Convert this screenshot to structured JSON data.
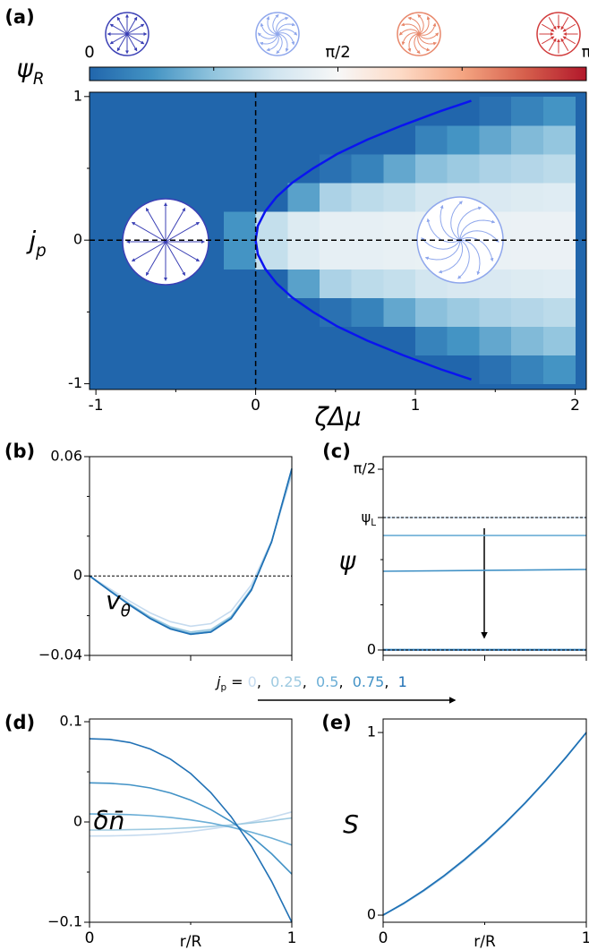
{
  "chart_data": [
    {
      "type": "heatmap",
      "panel_label": "(a)",
      "x": [
        -0.9,
        -0.7,
        -0.5,
        -0.3,
        -0.1,
        0.1,
        0.3,
        0.5,
        0.7,
        0.9,
        1.1,
        1.3,
        1.5,
        1.7,
        1.9
      ],
      "y": [
        -0.9,
        -0.7,
        -0.5,
        -0.3,
        -0.1,
        0.1,
        0.3,
        0.5,
        0.7,
        0.9
      ],
      "z": [
        [
          0,
          0,
          0,
          0,
          0,
          0,
          0,
          0,
          0,
          0,
          0,
          0,
          0.1,
          0.25,
          0.4
        ],
        [
          0,
          0,
          0,
          0,
          0,
          0,
          0,
          0,
          0,
          0,
          0.25,
          0.4,
          0.55,
          0.7,
          0.8
        ],
        [
          0,
          0,
          0,
          0,
          0,
          0,
          0,
          0.1,
          0.25,
          0.55,
          0.75,
          0.85,
          0.95,
          1.0,
          1.05
        ],
        [
          0,
          0,
          0,
          0,
          0,
          0,
          0.5,
          0.95,
          1.05,
          1.1,
          1.2,
          1.25,
          1.27,
          1.3,
          1.32
        ],
        [
          0,
          0,
          0,
          0,
          0.4,
          1.1,
          1.3,
          1.4,
          1.4,
          1.42,
          1.43,
          1.44,
          1.44,
          1.45,
          1.45
        ],
        [
          0,
          0,
          0,
          0,
          0.4,
          1.1,
          1.3,
          1.4,
          1.4,
          1.42,
          1.43,
          1.44,
          1.44,
          1.45,
          1.45
        ],
        [
          0,
          0,
          0,
          0,
          0,
          0,
          0.5,
          0.95,
          1.05,
          1.1,
          1.2,
          1.25,
          1.27,
          1.3,
          1.32
        ],
        [
          0,
          0,
          0,
          0,
          0,
          0,
          0,
          0.1,
          0.25,
          0.55,
          0.75,
          0.85,
          0.95,
          1.0,
          1.05
        ],
        [
          0,
          0,
          0,
          0,
          0,
          0,
          0,
          0,
          0,
          0,
          0.25,
          0.4,
          0.55,
          0.7,
          0.8
        ],
        [
          0,
          0,
          0,
          0,
          0,
          0,
          0,
          0,
          0,
          0,
          0,
          0,
          0.1,
          0.25,
          0.4
        ]
      ],
      "xlim": [
        -1.04,
        2.07
      ],
      "ylim": [
        -1.04,
        1.03
      ],
      "xticks": [
        -1,
        0,
        1,
        2
      ],
      "yticks": [
        -1,
        0,
        1
      ],
      "xminor": [
        -0.5,
        0.5,
        1.5
      ],
      "yminor": [
        -0.5,
        0.5
      ],
      "xlabel": "ζΔμ",
      "ylabel": {
        "text": "j",
        "subscript": "p"
      },
      "vlines": [
        0
      ],
      "hlines": [
        0
      ],
      "curve": {
        "color": "#0a14f0",
        "x": [
          1.35,
          1.16,
          0.92,
          0.7,
          0.51,
          0.36,
          0.23,
          0.13,
          0.06,
          0.014,
          0,
          0.014,
          0.06,
          0.13,
          0.23,
          0.36,
          0.51,
          0.7,
          0.92,
          1.16,
          1.35
        ],
        "y": [
          -0.97,
          -0.9,
          -0.8,
          -0.7,
          -0.6,
          -0.5,
          -0.4,
          -0.3,
          -0.2,
          -0.1,
          0,
          0.1,
          0.2,
          0.3,
          0.4,
          0.5,
          0.6,
          0.7,
          0.8,
          0.9,
          0.97
        ]
      },
      "colorbar": {
        "label": {
          "text": "ψ",
          "subscript": "R"
        },
        "lim": [
          0,
          3.1416
        ],
        "ticks": [
          {
            "value": 0,
            "label": "0"
          },
          {
            "value": 1.5708,
            "label": "π/2"
          },
          {
            "value": 3.1416,
            "label": "π"
          }
        ],
        "minor": [
          0.7854,
          2.3562
        ],
        "colors": [
          "#2166ac",
          "#4393c3",
          "#92c5de",
          "#d1e5f0",
          "#f7f7f7",
          "#fddbc7",
          "#f4a582",
          "#d6604d",
          "#b2182b"
        ]
      }
    },
    {
      "type": "line",
      "panel_label": "(b)",
      "x": [
        0,
        0.1,
        0.2,
        0.3,
        0.4,
        0.5,
        0.6,
        0.7,
        0.8,
        0.9,
        1
      ],
      "xlim": [
        0,
        1
      ],
      "ylim": [
        -0.04,
        0.06
      ],
      "xticks": [
        0,
        0.5,
        1
      ],
      "xtick_labels": false,
      "yticks": [
        {
          "value": 0.06,
          "label": "0.06"
        },
        0,
        {
          "value": -0.04,
          "label": "−0.04"
        }
      ],
      "yminor": [
        -0.02,
        0.02,
        0.04
      ],
      "ylabel": {
        "text": "v",
        "subscript": "θ"
      },
      "hlines": [
        0
      ],
      "series": [
        {
          "name": "0",
          "color": "#c6dbef",
          "values": [
            0,
            -0.0065,
            -0.0128,
            -0.0186,
            -0.023,
            -0.0253,
            -0.024,
            -0.0177,
            -0.0045,
            0.0176,
            0.051
          ]
        },
        {
          "name": "0.25",
          "color": "#9ecae1",
          "values": [
            0,
            -0.0072,
            -0.0142,
            -0.0206,
            -0.0256,
            -0.0282,
            -0.027,
            -0.0204,
            -0.0064,
            0.0173,
            0.053
          ]
        },
        {
          "name": "0.5",
          "color": "#6baed6",
          "values": [
            0,
            -0.0074,
            -0.0146,
            -0.0212,
            -0.0263,
            -0.029,
            -0.0279,
            -0.0211,
            -0.0069,
            0.0171,
            0.0537
          ]
        },
        {
          "name": "0.75",
          "color": "#4292c6",
          "values": [
            0,
            -0.0075,
            -0.0147,
            -0.0214,
            -0.0266,
            -0.0293,
            -0.0282,
            -0.0214,
            -0.0071,
            0.0171,
            0.0539
          ]
        },
        {
          "name": "1",
          "color": "#2171b5",
          "values": [
            0,
            -0.0075,
            -0.0148,
            -0.0215,
            -0.0267,
            -0.0294,
            -0.0283,
            -0.0215,
            -0.0072,
            0.0171,
            0.054
          ]
        }
      ]
    },
    {
      "type": "line",
      "panel_label": "(c)",
      "x": [
        0,
        1
      ],
      "xlim": [
        0,
        1
      ],
      "ylim": [
        -0.047,
        1.68
      ],
      "xticks": [
        0,
        0.5,
        1
      ],
      "xtick_labels": false,
      "yticks": [
        {
          "value": 1.5708,
          "label": "π/2"
        },
        {
          "value": 1.151,
          "label": "ψ",
          "subscript": "L"
        },
        0
      ],
      "yminor": [
        0.3927,
        0.7854
      ],
      "ylabel": "ψ",
      "hlines": [
        1.151,
        0
      ],
      "series": [
        {
          "color": "#c6dbef",
          "values": [
            1.151,
            1.151
          ]
        },
        {
          "color": "#6baed6",
          "values": [
            0.995,
            0.995
          ]
        },
        {
          "color": "#4292c6",
          "values": [
            0.684,
            0.7
          ]
        },
        {
          "color": "#4292c6",
          "values": [
            0.004,
            0.004
          ]
        },
        {
          "color": "#2171b5",
          "values": [
            0,
            0
          ]
        }
      ]
    },
    {
      "type": "line",
      "panel_label": "(d)",
      "x": [
        0,
        0.1,
        0.2,
        0.3,
        0.4,
        0.5,
        0.6,
        0.7,
        0.8,
        0.9,
        1
      ],
      "xlim": [
        0,
        1
      ],
      "ylim": [
        -0.1,
        0.1027
      ],
      "xticks": [
        0,
        1
      ],
      "xminor": [
        0.5
      ],
      "yticks": [
        0.1,
        0,
        {
          "value": -0.1,
          "label": "−0.1"
        }
      ],
      "yminor": [
        -0.05,
        0.05
      ],
      "ylabel": "δn̄",
      "xlabel": "r/R",
      "series": [
        {
          "color": "#c6dbef",
          "values": [
            -0.014,
            -0.0139,
            -0.0135,
            -0.0127,
            -0.0113,
            -0.0095,
            -0.0069,
            -0.0038,
            0.0001,
            0.0046,
            0.01
          ]
        },
        {
          "color": "#9ecae1",
          "values": [
            -0.008,
            -0.008,
            -0.0077,
            -0.0073,
            -0.0067,
            -0.0057,
            -0.0045,
            -0.0029,
            -0.001,
            0.0013,
            0.004
          ]
        },
        {
          "color": "#6baed6",
          "values": [
            0.008,
            0.0079,
            0.0073,
            0.0063,
            0.0046,
            0.0021,
            -0.0011,
            -0.0052,
            -0.0102,
            -0.0161,
            -0.023
          ]
        },
        {
          "color": "#4292c6",
          "values": [
            0.039,
            0.0386,
            0.0371,
            0.0339,
            0.0289,
            0.0218,
            0.0123,
            0.0004,
            -0.0143,
            -0.0317,
            -0.052
          ]
        },
        {
          "color": "#2171b5",
          "values": [
            0.083,
            0.0823,
            0.0792,
            0.0728,
            0.0627,
            0.0483,
            0.0292,
            0.0053,
            -0.0241,
            -0.0592,
            -0.1
          ]
        }
      ]
    },
    {
      "type": "line",
      "panel_label": "(e)",
      "x": [
        0,
        0.1,
        0.2,
        0.3,
        0.4,
        0.5,
        0.6,
        0.7,
        0.8,
        0.9,
        1
      ],
      "xlim": [
        0,
        1
      ],
      "ylim": [
        -0.039,
        1.074
      ],
      "xticks": [
        0,
        1
      ],
      "xminor": [
        0.5
      ],
      "yticks": [
        1,
        0
      ],
      "ylabel": "S",
      "xlabel": "r/R",
      "series": [
        {
          "color": "#c6dbef",
          "values": [
            0,
            0.06,
            0.131,
            0.21,
            0.298,
            0.394,
            0.499,
            0.612,
            0.733,
            0.862,
            1
          ]
        },
        {
          "color": "#9ecae1",
          "values": [
            0,
            0.062,
            0.134,
            0.214,
            0.302,
            0.398,
            0.502,
            0.615,
            0.735,
            0.863,
            1
          ]
        },
        {
          "color": "#6baed6",
          "values": [
            0,
            0.063,
            0.135,
            0.215,
            0.303,
            0.399,
            0.503,
            0.615,
            0.735,
            0.864,
            1
          ]
        },
        {
          "color": "#4292c6",
          "values": [
            0,
            0.064,
            0.136,
            0.216,
            0.304,
            0.4,
            0.504,
            0.616,
            0.736,
            0.864,
            1
          ]
        },
        {
          "color": "#2171b5",
          "values": [
            0,
            0.064,
            0.136,
            0.216,
            0.304,
            0.4,
            0.504,
            0.616,
            0.736,
            0.864,
            1
          ]
        }
      ]
    }
  ],
  "legend": {
    "title": {
      "text": "j",
      "subscript": "p",
      "after": " = "
    },
    "separator": ",  ",
    "series_of": 1
  }
}
